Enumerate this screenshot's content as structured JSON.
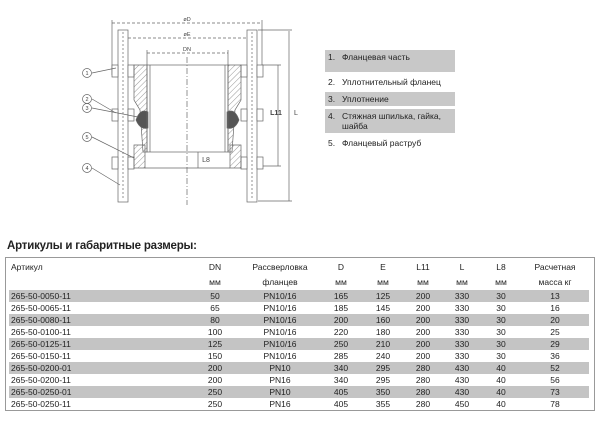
{
  "drawing": {
    "dimension_labels": {
      "D": "øD",
      "E": "øE",
      "DN": "DN",
      "L11": "L11",
      "L": "L",
      "L8": "L8"
    },
    "callouts": [
      "1",
      "2",
      "3",
      "5",
      "4"
    ]
  },
  "legend": [
    {
      "num": "1.",
      "text": "Фланцевая часть"
    },
    {
      "num": "2.",
      "text": "Уплотнительный фланец"
    },
    {
      "num": "3.",
      "text": "Уплотнение"
    },
    {
      "num": "4.",
      "text": "Стяжная шпилька, гайка, шайба"
    },
    {
      "num": "5.",
      "text": "Фланцевый раструб"
    }
  ],
  "table": {
    "title": "Артикулы и габаритные размеры:",
    "headers": [
      "Артикул",
      "DN",
      "Рассверловка",
      "D",
      "E",
      "L11",
      "L",
      "L8",
      "Расчетная"
    ],
    "subheaders": [
      "",
      "мм",
      "фланцев",
      "мм",
      "мм",
      "мм",
      "мм",
      "мм",
      "масса кг"
    ],
    "rows": [
      [
        "265-50-0050-11",
        "50",
        "PN10/16",
        "165",
        "125",
        "200",
        "330",
        "30",
        "13"
      ],
      [
        "265-50-0065-11",
        "65",
        "PN10/16",
        "185",
        "145",
        "200",
        "330",
        "30",
        "16"
      ],
      [
        "265-50-0080-11",
        "80",
        "PN10/16",
        "200",
        "160",
        "200",
        "330",
        "30",
        "20"
      ],
      [
        "265-50-0100-11",
        "100",
        "PN10/16",
        "220",
        "180",
        "200",
        "330",
        "30",
        "25"
      ],
      [
        "265-50-0125-11",
        "125",
        "PN10/16",
        "250",
        "210",
        "200",
        "330",
        "30",
        "29"
      ],
      [
        "265-50-0150-11",
        "150",
        "PN10/16",
        "285",
        "240",
        "200",
        "330",
        "30",
        "36"
      ],
      [
        "265-50-0200-01",
        "200",
        "PN10",
        "340",
        "295",
        "280",
        "430",
        "40",
        "52"
      ],
      [
        "265-50-0200-11",
        "200",
        "PN16",
        "340",
        "295",
        "280",
        "430",
        "40",
        "56"
      ],
      [
        "265-50-0250-01",
        "250",
        "PN10",
        "405",
        "350",
        "280",
        "430",
        "40",
        "73"
      ],
      [
        "265-50-0250-11",
        "250",
        "PN16",
        "405",
        "355",
        "280",
        "450",
        "40",
        "78"
      ]
    ]
  }
}
